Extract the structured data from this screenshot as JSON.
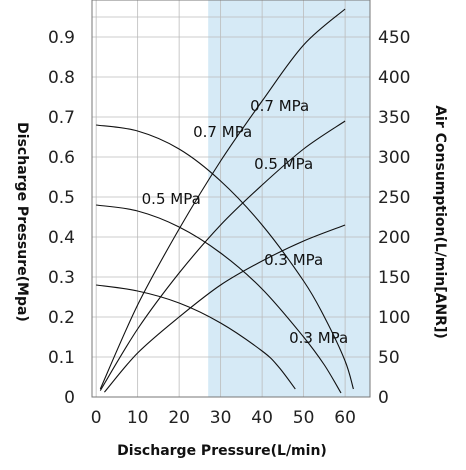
{
  "chart_data": {
    "type": "line",
    "title": "",
    "xlabel": "Discharge Pressure(L/min)",
    "ylabel_left": "Discharge Pressure(Mpa)",
    "ylabel_right": "Air Consumption(L/min[ANR])",
    "xlim": [
      -1,
      66
    ],
    "ylim_left": [
      0,
      0.9
    ],
    "ylim_right": [
      0,
      450
    ],
    "x_ticks": [
      "0",
      "10",
      "20",
      "30",
      "40",
      "50",
      "60"
    ],
    "y_left_ticks": [
      "0",
      "0.1",
      "0.2",
      "0.3",
      "0.4",
      "0.5",
      "0.6",
      "0.7",
      "0.8",
      "0.9"
    ],
    "y_right_ticks": [
      "0",
      "50",
      "100",
      "150",
      "200",
      "250",
      "300",
      "350",
      "400",
      "450"
    ],
    "grid": true,
    "highlight_region": {
      "x_from": 27,
      "x_to": 66,
      "color": "#d6eaf6"
    },
    "series": [
      {
        "name": "0.7 MPa",
        "axis": "left",
        "x": [
          0,
          10,
          20,
          30,
          40,
          50,
          55,
          60,
          62
        ],
        "y": [
          0.68,
          0.665,
          0.62,
          0.54,
          0.43,
          0.29,
          0.2,
          0.09,
          0.02
        ]
      },
      {
        "name": "0.5 MPa",
        "axis": "left",
        "x": [
          0,
          10,
          20,
          30,
          40,
          50,
          55,
          59
        ],
        "y": [
          0.48,
          0.465,
          0.425,
          0.36,
          0.27,
          0.15,
          0.08,
          0.01
        ]
      },
      {
        "name": "0.3 MPa",
        "axis": "left",
        "x": [
          0,
          10,
          20,
          30,
          40,
          44,
          48
        ],
        "y": [
          0.28,
          0.265,
          0.235,
          0.185,
          0.115,
          0.075,
          0.02
        ]
      },
      {
        "name": "0.7 MPa",
        "axis": "right",
        "x": [
          1,
          10,
          20,
          30,
          40,
          50,
          60
        ],
        "y": [
          10,
          115,
          210,
          295,
          370,
          440,
          485
        ]
      },
      {
        "name": "0.5 MPa",
        "axis": "right",
        "x": [
          1,
          10,
          20,
          30,
          40,
          50,
          60
        ],
        "y": [
          8,
          85,
          155,
          215,
          265,
          310,
          345
        ]
      },
      {
        "name": "0.3 MPa",
        "axis": "right",
        "x": [
          2,
          10,
          20,
          30,
          40,
          50,
          60
        ],
        "y": [
          6,
          55,
          100,
          140,
          170,
          195,
          215
        ]
      }
    ],
    "curve_labels": [
      {
        "text": "0.7 MPa",
        "series": 0
      },
      {
        "text": "0.5 MPa",
        "series": 1
      },
      {
        "text": "0.3 MPa",
        "series": 2
      },
      {
        "text": "0.7 MPa",
        "series": 3
      },
      {
        "text": "0.5 MPa",
        "series": 4
      },
      {
        "text": "0.3 MPa",
        "series": 5
      }
    ],
    "colors": {
      "background": "#ffffff",
      "highlight": "#d6eaf6",
      "grid": "#bbbbbb",
      "curve": "#111111"
    }
  }
}
